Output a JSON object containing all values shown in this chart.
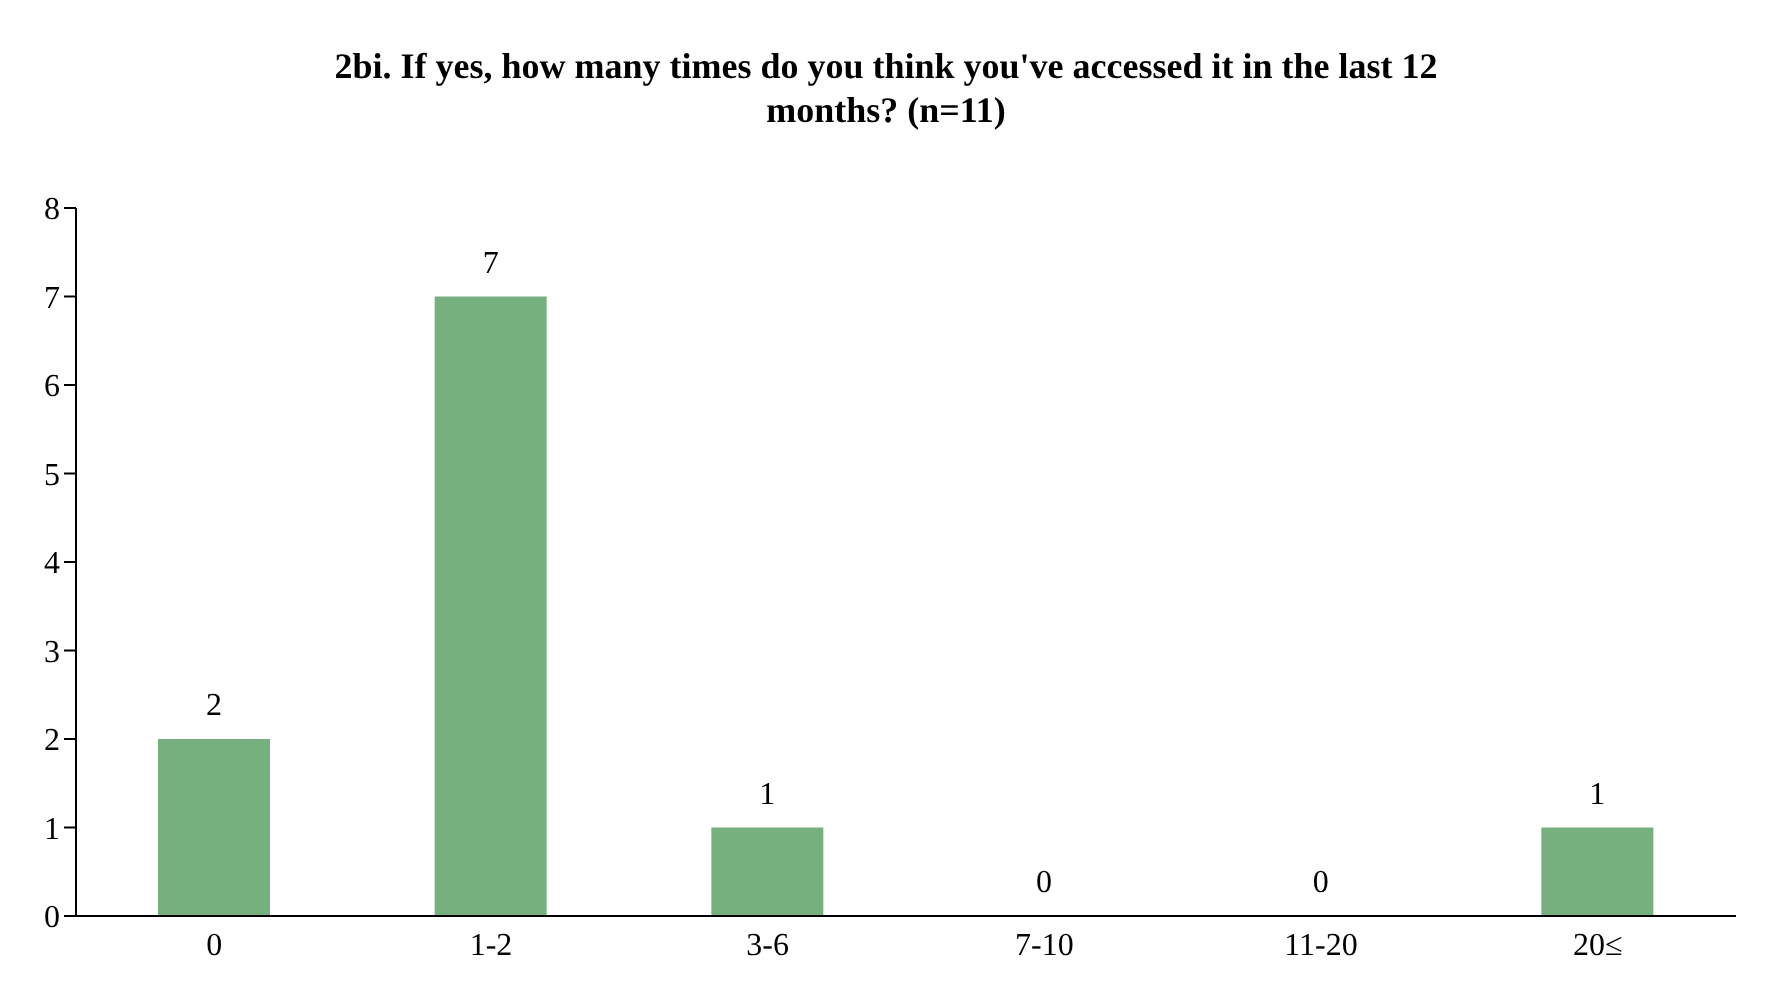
{
  "chart_data": {
    "type": "bar",
    "title": "2bi. If yes, how many times do you think you've accessed it in the last 12 months? (n=11)",
    "categories": [
      "0",
      "1-2",
      "3-6",
      "7-10",
      "11-20",
      "20≤"
    ],
    "values": [
      2,
      7,
      1,
      0,
      0,
      1
    ],
    "color": "#76b07f",
    "ylim": [
      0,
      8
    ],
    "yticks": [
      0,
      1,
      2,
      3,
      4,
      5,
      6,
      7,
      8
    ],
    "grid": false,
    "data_labels": true
  }
}
